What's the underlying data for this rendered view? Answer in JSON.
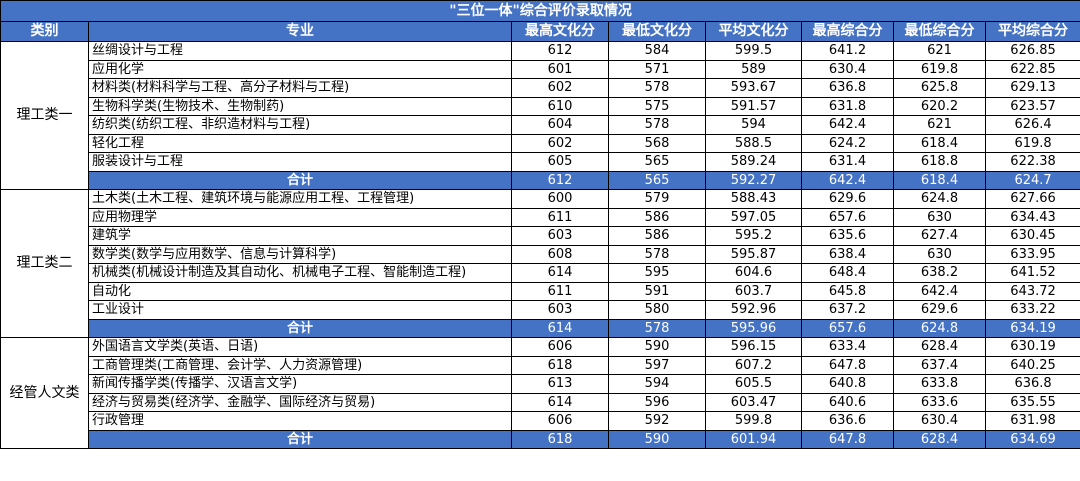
{
  "title": "\"三位一体\"综合评价录取情况",
  "headers": [
    "类别",
    "专业",
    "最高文化分",
    "最低文化分",
    "平均文化分",
    "最高综合分",
    "最低综合分",
    "平均综合分"
  ],
  "groups": [
    {
      "category": "理工类一",
      "rows": [
        [
          "丝绸设计与工程",
          "612",
          "584",
          "599.5",
          "641.2",
          "621",
          "626.85"
        ],
        [
          "应用化学",
          "601",
          "571",
          "589",
          "630.4",
          "619.8",
          "622.85"
        ],
        [
          "材料类(材料科学与工程、高分子材料与工程)",
          "602",
          "578",
          "593.67",
          "636.8",
          "625.8",
          "629.13"
        ],
        [
          "生物科学类(生物技术、生物制药)",
          "610",
          "575",
          "591.57",
          "631.8",
          "620.2",
          "623.57"
        ],
        [
          "纺织类(纺织工程、非织造材料与工程)",
          "604",
          "578",
          "594",
          "642.4",
          "621",
          "626.4"
        ],
        [
          "轻化工程",
          "602",
          "568",
          "588.5",
          "624.2",
          "618.4",
          "619.8"
        ],
        [
          "服装设计与工程",
          "605",
          "565",
          "589.24",
          "631.4",
          "618.8",
          "622.38"
        ]
      ],
      "total": [
        "合计",
        "612",
        "565",
        "592.27",
        "642.4",
        "618.4",
        "624.7"
      ]
    },
    {
      "category": "理工类二",
      "rows": [
        [
          "土木类(土木工程、建筑环境与能源应用工程、工程管理)",
          "600",
          "579",
          "588.43",
          "629.6",
          "624.8",
          "627.66"
        ],
        [
          "应用物理学",
          "611",
          "586",
          "597.05",
          "657.6",
          "630",
          "634.43"
        ],
        [
          "建筑学",
          "603",
          "586",
          "595.2",
          "635.6",
          "627.4",
          "630.45"
        ],
        [
          "数学类(数学与应用数学、信息与计算科学)",
          "608",
          "578",
          "595.87",
          "638.4",
          "630",
          "633.95"
        ],
        [
          "机械类(机械设计制造及其自动化、机械电子工程、智能制造工程)",
          "614",
          "595",
          "604.6",
          "648.4",
          "638.2",
          "641.52"
        ],
        [
          "自动化",
          "611",
          "591",
          "603.7",
          "645.8",
          "642.4",
          "643.72"
        ],
        [
          "工业设计",
          "603",
          "580",
          "592.96",
          "637.2",
          "629.6",
          "633.22"
        ]
      ],
      "total": [
        "合计",
        "614",
        "578",
        "595.96",
        "657.6",
        "624.8",
        "634.19"
      ]
    },
    {
      "category": "经管人文类",
      "rows": [
        [
          "外国语言文学类(英语、日语)",
          "606",
          "590",
          "596.15",
          "633.4",
          "628.4",
          "630.19"
        ],
        [
          "工商管理类(工商管理、会计学、人力资源管理)",
          "618",
          "597",
          "607.2",
          "647.8",
          "637.4",
          "640.25"
        ],
        [
          "新闻传播学类(传播学、汉语言文学)",
          "613",
          "594",
          "605.5",
          "640.8",
          "633.8",
          "636.8"
        ],
        [
          "经济与贸易类(经济学、金融学、国际经济与贸易)",
          "614",
          "596",
          "603.47",
          "640.6",
          "633.6",
          "635.55"
        ],
        [
          "行政管理",
          "606",
          "592",
          "599.8",
          "636.6",
          "630.4",
          "631.98"
        ]
      ],
      "total": [
        "合计",
        "618",
        "590",
        "601.94",
        "647.8",
        "628.4",
        "634.69"
      ]
    }
  ]
}
